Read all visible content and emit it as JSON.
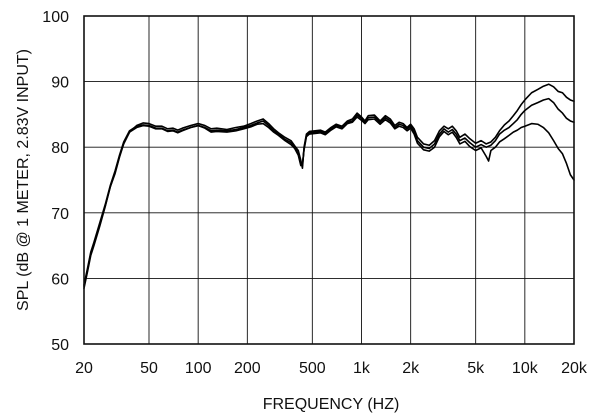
{
  "chart_data": {
    "type": "line",
    "xscale": "log",
    "xlabel": "FREQUENCY  (HZ)",
    "ylabel": "SPL (dB @ 1 METER, 2.83V INPUT)",
    "xlim": [
      20,
      20000
    ],
    "ylim": [
      50,
      100
    ],
    "grid": true,
    "x_ticks": [
      {
        "value": 20,
        "label": "20"
      },
      {
        "value": 50,
        "label": "50"
      },
      {
        "value": 100,
        "label": "100"
      },
      {
        "value": 200,
        "label": "200"
      },
      {
        "value": 500,
        "label": "500"
      },
      {
        "value": 1000,
        "label": "1k"
      },
      {
        "value": 2000,
        "label": "2k"
      },
      {
        "value": 5000,
        "label": "5k"
      },
      {
        "value": 10000,
        "label": "10k"
      },
      {
        "value": 20000,
        "label": "20k"
      }
    ],
    "y_ticks": [
      {
        "value": 50,
        "label": "50"
      },
      {
        "value": 60,
        "label": "60"
      },
      {
        "value": 70,
        "label": "70"
      },
      {
        "value": 80,
        "label": "80"
      },
      {
        "value": 90,
        "label": "90"
      },
      {
        "value": 100,
        "label": "100"
      }
    ],
    "series": [
      {
        "points": [
          [
            20,
            58.5
          ],
          [
            21,
            61
          ],
          [
            22,
            63.5
          ],
          [
            23,
            65
          ],
          [
            25,
            68
          ],
          [
            27,
            71
          ],
          [
            29,
            74
          ],
          [
            31,
            76
          ],
          [
            33,
            78.5
          ],
          [
            35,
            80.5
          ],
          [
            38,
            82.3
          ],
          [
            42,
            83.3
          ],
          [
            46,
            83.7
          ],
          [
            50,
            83.6
          ],
          [
            55,
            83.2
          ],
          [
            60,
            83.2
          ],
          [
            65,
            82.8
          ],
          [
            70,
            82.9
          ],
          [
            75,
            82.6
          ],
          [
            80,
            82.9
          ],
          [
            90,
            83.3
          ],
          [
            100,
            83.6
          ],
          [
            110,
            83.3
          ],
          [
            120,
            82.8
          ],
          [
            130,
            82.9
          ],
          [
            150,
            82.7
          ],
          [
            170,
            83
          ],
          [
            190,
            83.2
          ],
          [
            210,
            83.6
          ],
          [
            230,
            84
          ],
          [
            250,
            84.3
          ],
          [
            270,
            83.6
          ],
          [
            290,
            82.8
          ],
          [
            310,
            82.2
          ],
          [
            340,
            81.5
          ],
          [
            370,
            81
          ],
          [
            390,
            80.2
          ],
          [
            410,
            79.5
          ],
          [
            425,
            78
          ],
          [
            435,
            76.8
          ],
          [
            445,
            80
          ],
          [
            460,
            82
          ],
          [
            480,
            82.4
          ],
          [
            520,
            82.5
          ],
          [
            560,
            82.6
          ],
          [
            600,
            82.3
          ],
          [
            650,
            83
          ],
          [
            700,
            83.5
          ],
          [
            760,
            83.2
          ],
          [
            820,
            84
          ],
          [
            880,
            84.3
          ],
          [
            940,
            85.2
          ],
          [
            1000,
            84.6
          ],
          [
            1050,
            84
          ],
          [
            1100,
            84.8
          ],
          [
            1200,
            84.9
          ],
          [
            1300,
            84
          ],
          [
            1400,
            84.8
          ],
          [
            1500,
            84.3
          ],
          [
            1600,
            83.3
          ],
          [
            1700,
            83.8
          ],
          [
            1800,
            83.6
          ],
          [
            1900,
            83
          ],
          [
            2000,
            83.5
          ],
          [
            2100,
            82.8
          ],
          [
            2200,
            81.5
          ],
          [
            2400,
            80.5
          ],
          [
            2600,
            80.3
          ],
          [
            2800,
            81
          ],
          [
            3000,
            82.5
          ],
          [
            3200,
            83.2
          ],
          [
            3400,
            82.8
          ],
          [
            3600,
            83.2
          ],
          [
            3800,
            82.5
          ],
          [
            4000,
            81.5
          ],
          [
            4300,
            82
          ],
          [
            4600,
            81.3
          ],
          [
            5000,
            80.6
          ],
          [
            5400,
            81
          ],
          [
            5800,
            80.5
          ],
          [
            6200,
            80.8
          ],
          [
            6600,
            81.5
          ],
          [
            7000,
            82.5
          ],
          [
            7500,
            83.4
          ],
          [
            8000,
            84
          ],
          [
            8500,
            84.8
          ],
          [
            9000,
            85.6
          ],
          [
            9500,
            86.5
          ],
          [
            10000,
            87.2
          ],
          [
            11000,
            88.3
          ],
          [
            12000,
            88.8
          ],
          [
            13000,
            89.3
          ],
          [
            14000,
            89.6
          ],
          [
            15000,
            89.2
          ],
          [
            16000,
            88.5
          ],
          [
            17000,
            88.3
          ],
          [
            18000,
            87.6
          ],
          [
            19000,
            87.2
          ],
          [
            20000,
            87
          ]
        ]
      },
      {
        "points": [
          [
            20,
            59
          ],
          [
            21,
            61.5
          ],
          [
            22,
            64
          ],
          [
            23,
            65.5
          ],
          [
            25,
            68.5
          ],
          [
            27,
            71.3
          ],
          [
            29,
            74.2
          ],
          [
            31,
            76.4
          ],
          [
            33,
            78.8
          ],
          [
            35,
            80.8
          ],
          [
            38,
            82.5
          ],
          [
            42,
            83.2
          ],
          [
            46,
            83.4
          ],
          [
            50,
            83.3
          ],
          [
            55,
            82.9
          ],
          [
            60,
            82.9
          ],
          [
            65,
            82.5
          ],
          [
            70,
            82.6
          ],
          [
            75,
            82.3
          ],
          [
            80,
            82.6
          ],
          [
            90,
            83
          ],
          [
            100,
            83.3
          ],
          [
            110,
            83
          ],
          [
            120,
            82.5
          ],
          [
            130,
            82.6
          ],
          [
            150,
            82.5
          ],
          [
            170,
            82.7
          ],
          [
            190,
            83
          ],
          [
            210,
            83.3
          ],
          [
            230,
            83.7
          ],
          [
            250,
            84
          ],
          [
            270,
            83.3
          ],
          [
            290,
            82.5
          ],
          [
            310,
            82
          ],
          [
            340,
            81.2
          ],
          [
            370,
            80.7
          ],
          [
            390,
            80
          ],
          [
            410,
            79
          ],
          [
            425,
            77.5
          ],
          [
            435,
            77.2
          ],
          [
            445,
            79.8
          ],
          [
            460,
            81.8
          ],
          [
            480,
            82.2
          ],
          [
            520,
            82.3
          ],
          [
            560,
            82.4
          ],
          [
            600,
            82.1
          ],
          [
            650,
            82.8
          ],
          [
            700,
            83.3
          ],
          [
            760,
            83
          ],
          [
            820,
            83.8
          ],
          [
            880,
            84
          ],
          [
            940,
            84.9
          ],
          [
            1000,
            84.4
          ],
          [
            1050,
            83.8
          ],
          [
            1100,
            84.5
          ],
          [
            1200,
            84.6
          ],
          [
            1300,
            83.8
          ],
          [
            1400,
            84.5
          ],
          [
            1500,
            84
          ],
          [
            1600,
            83
          ],
          [
            1700,
            83.5
          ],
          [
            1800,
            83.3
          ],
          [
            1900,
            82.8
          ],
          [
            2000,
            83.2
          ],
          [
            2100,
            82.4
          ],
          [
            2200,
            81
          ],
          [
            2400,
            80
          ],
          [
            2600,
            79.8
          ],
          [
            2800,
            80.5
          ],
          [
            3000,
            82
          ],
          [
            3200,
            82.8
          ],
          [
            3400,
            82.3
          ],
          [
            3600,
            82.7
          ],
          [
            3800,
            82
          ],
          [
            4000,
            81
          ],
          [
            4300,
            81.4
          ],
          [
            4600,
            80.7
          ],
          [
            5000,
            80
          ],
          [
            5400,
            80.4
          ],
          [
            5800,
            80
          ],
          [
            6200,
            80.3
          ],
          [
            6600,
            81
          ],
          [
            7000,
            82
          ],
          [
            7500,
            82.6
          ],
          [
            8000,
            83
          ],
          [
            8500,
            83.6
          ],
          [
            9000,
            84.2
          ],
          [
            9500,
            85
          ],
          [
            10000,
            85.6
          ],
          [
            11000,
            86.4
          ],
          [
            12000,
            86.8
          ],
          [
            13000,
            87.2
          ],
          [
            14000,
            87.4
          ],
          [
            15000,
            86.8
          ],
          [
            16000,
            85.8
          ],
          [
            17000,
            85.2
          ],
          [
            18000,
            84.4
          ],
          [
            19000,
            84
          ],
          [
            20000,
            83.8
          ]
        ]
      },
      {
        "points": [
          [
            20,
            58.8
          ],
          [
            21,
            61.2
          ],
          [
            22,
            63.8
          ],
          [
            23,
            65.2
          ],
          [
            25,
            68.2
          ],
          [
            27,
            71.1
          ],
          [
            29,
            74
          ],
          [
            31,
            76.2
          ],
          [
            33,
            78.6
          ],
          [
            35,
            80.6
          ],
          [
            38,
            82.3
          ],
          [
            42,
            83
          ],
          [
            46,
            83.3
          ],
          [
            50,
            83.2
          ],
          [
            55,
            82.8
          ],
          [
            60,
            82.8
          ],
          [
            65,
            82.4
          ],
          [
            70,
            82.5
          ],
          [
            75,
            82.2
          ],
          [
            80,
            82.5
          ],
          [
            90,
            83
          ],
          [
            100,
            83.3
          ],
          [
            110,
            82.9
          ],
          [
            120,
            82.3
          ],
          [
            130,
            82.4
          ],
          [
            150,
            82.3
          ],
          [
            170,
            82.5
          ],
          [
            190,
            82.8
          ],
          [
            210,
            83.1
          ],
          [
            230,
            83.5
          ],
          [
            250,
            83.6
          ],
          [
            270,
            83
          ],
          [
            290,
            82.3
          ],
          [
            310,
            81.8
          ],
          [
            340,
            81
          ],
          [
            370,
            80.4
          ],
          [
            390,
            79.8
          ],
          [
            410,
            78.8
          ],
          [
            425,
            77.2
          ],
          [
            435,
            77.5
          ],
          [
            445,
            79.6
          ],
          [
            460,
            81.6
          ],
          [
            480,
            82
          ],
          [
            520,
            82.1
          ],
          [
            560,
            82.2
          ],
          [
            600,
            81.9
          ],
          [
            650,
            82.6
          ],
          [
            700,
            83.1
          ],
          [
            760,
            82.8
          ],
          [
            820,
            83.6
          ],
          [
            880,
            83.8
          ],
          [
            940,
            84.6
          ],
          [
            1000,
            84.1
          ],
          [
            1050,
            83.6
          ],
          [
            1100,
            84.2
          ],
          [
            1200,
            84.3
          ],
          [
            1300,
            83.5
          ],
          [
            1400,
            84.2
          ],
          [
            1500,
            83.7
          ],
          [
            1600,
            82.8
          ],
          [
            1700,
            83.2
          ],
          [
            1800,
            83
          ],
          [
            1900,
            82.5
          ],
          [
            2000,
            82.9
          ],
          [
            2100,
            82
          ],
          [
            2200,
            80.6
          ],
          [
            2400,
            79.6
          ],
          [
            2600,
            79.4
          ],
          [
            2800,
            80
          ],
          [
            3000,
            81.6
          ],
          [
            3200,
            82.4
          ],
          [
            3400,
            81.9
          ],
          [
            3600,
            82.3
          ],
          [
            3800,
            81.5
          ],
          [
            4000,
            80.5
          ],
          [
            4300,
            80.9
          ],
          [
            4600,
            80.1
          ],
          [
            5000,
            79.5
          ],
          [
            5400,
            79.9
          ],
          [
            5800,
            78.6
          ],
          [
            6000,
            77.9
          ],
          [
            6200,
            79.5
          ],
          [
            6600,
            80
          ],
          [
            7000,
            80.8
          ],
          [
            7500,
            81.3
          ],
          [
            8000,
            81.8
          ],
          [
            8500,
            82.3
          ],
          [
            9000,
            82.6
          ],
          [
            9500,
            83
          ],
          [
            10000,
            83.2
          ],
          [
            11000,
            83.6
          ],
          [
            12000,
            83.5
          ],
          [
            13000,
            83
          ],
          [
            14000,
            82.2
          ],
          [
            15000,
            81
          ],
          [
            16000,
            79.8
          ],
          [
            17000,
            79
          ],
          [
            18000,
            77.5
          ],
          [
            19000,
            75.8
          ],
          [
            20000,
            75
          ]
        ]
      }
    ]
  }
}
